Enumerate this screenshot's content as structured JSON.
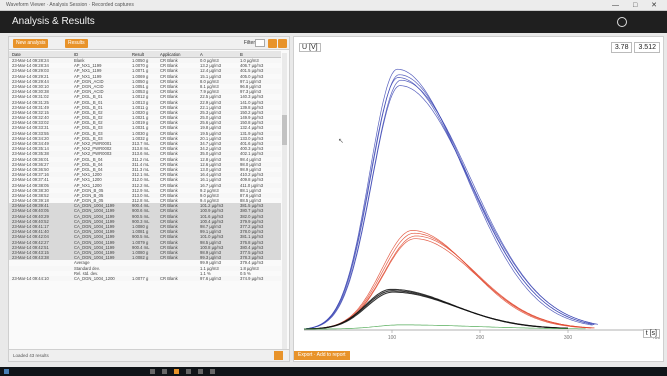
{
  "window": {
    "title": "Waveform Viewer · Analysis Session · Recorded captures",
    "controls": "— □ ✕"
  },
  "app": {
    "title": "Analysis & Results",
    "brand": ""
  },
  "left_panel": {
    "buttons": [
      "New analysis",
      "Results"
    ],
    "filter_label": "Filter",
    "columns": [
      "Date",
      "ID",
      "Result",
      "Application",
      "A",
      "B"
    ],
    "rows": [
      [
        "23-Mar-14 09:28:24",
        "Blank",
        "1.0050 g",
        "CR Blank",
        "0.0 µg/m3",
        "1.0 µg/m3"
      ],
      [
        "23-Mar-14 09:28:34",
        "AP_NX1_1199",
        "1.0070 g",
        "CR Blank",
        "13.2 µg/m3",
        "406.7 µg/m3"
      ],
      [
        "23-Mar-14 09:29:03",
        "AP_NX1_1199",
        "1.0071 g",
        "CR Blank",
        "12.4 µg/m3",
        "401.5 µg/m3"
      ],
      [
        "23-Mar-14 09:29:21",
        "AP_NX1_1199",
        "1.0069 g",
        "CR Blank",
        "15.1 µg/m3",
        "405.0 µg/m3"
      ],
      [
        "23-Mar-14 09:29:44",
        "AP_DGN_ACID",
        "1.0050 g",
        "CR Blank",
        "8.0 µg/m3",
        "97.1 µg/m3"
      ],
      [
        "23-Mar-14 09:30:10",
        "AP_DGN_ACID",
        "1.0051 g",
        "CR Blank",
        "8.1 µg/m3",
        "96.8 µg/m3"
      ],
      [
        "23-Mar-14 09:30:38",
        "AP_DGN_ACID",
        "1.0053 g",
        "CR Blank",
        "7.9 µg/m3",
        "97.3 µg/m3"
      ],
      [
        "23-Mar-14 09:31:02",
        "AP_DGL_B_01",
        "1.0012 g",
        "CR Blank",
        "22.5 µg/m3",
        "140.3 µg/m3"
      ],
      [
        "23-Mar-14 09:31:25",
        "AP_DGL_B_01",
        "1.0013 g",
        "CR Blank",
        "22.9 µg/m3",
        "141.0 µg/m3"
      ],
      [
        "23-Mar-14 09:31:49",
        "AP_DGL_B_01",
        "1.0011 g",
        "CR Blank",
        "22.1 µg/m3",
        "139.8 µg/m3"
      ],
      [
        "23-Mar-14 09:32:15",
        "AP_DGL_B_02",
        "1.0020 g",
        "CR Blank",
        "25.3 µg/m3",
        "150.2 µg/m3"
      ],
      [
        "23-Mar-14 09:32:40",
        "AP_DGL_B_02",
        "1.0021 g",
        "CR Blank",
        "25.0 µg/m3",
        "149.9 µg/m3"
      ],
      [
        "23-Mar-14 09:33:02",
        "AP_DGL_B_02",
        "1.0019 g",
        "CR Blank",
        "25.6 µg/m3",
        "150.8 µg/m3"
      ],
      [
        "23-Mar-14 09:33:31",
        "AP_DGL_B_03",
        "1.0031 g",
        "CR Blank",
        "19.8 µg/m3",
        "132.4 µg/m3"
      ],
      [
        "23-Mar-14 09:33:55",
        "AP_DGL_B_03",
        "1.0030 g",
        "CR Blank",
        "19.5 µg/m3",
        "131.9 µg/m3"
      ],
      [
        "23-Mar-14 09:34:20",
        "AP_DGL_B_03",
        "1.0032 g",
        "CR Blank",
        "20.1 µg/m3",
        "133.0 µg/m3"
      ],
      [
        "23-Mar-14 09:34:49",
        "AP_NX2_PWR0001",
        "313.7 mL",
        "CR Blank",
        "34.7 µg/m3",
        "401.6 µg/m3"
      ],
      [
        "23-Mar-14 09:35:14",
        "AP_NX2_PWR0002",
        "313.8 mL",
        "CR Blank",
        "34.2 µg/m3",
        "400.3 µg/m3"
      ],
      [
        "23-Mar-14 09:35:38",
        "AP_NX2_PWR0003",
        "313.6 mL",
        "CR Blank",
        "35.0 µg/m3",
        "402.1 µg/m3"
      ],
      [
        "23-Mar-14 09:36:01",
        "AP_DGL_B_04",
        "311.2 mL",
        "CR Blank",
        "12.8 µg/m3",
        "98.4 µg/m3"
      ],
      [
        "23-Mar-14 09:36:27",
        "AP_DGL_B_04",
        "311.4 mL",
        "CR Blank",
        "12.6 µg/m3",
        "98.0 µg/m3"
      ],
      [
        "23-Mar-14 09:36:50",
        "AP_DGL_B_04",
        "311.3 mL",
        "CR Blank",
        "13.0 µg/m3",
        "98.9 µg/m3"
      ],
      [
        "23-Mar-14 09:37:16",
        "AP_NX1_1200",
        "312.1 mL",
        "CR Blank",
        "16.4 µg/m3",
        "410.2 µg/m3"
      ],
      [
        "23-Mar-14 09:37:41",
        "AP_NX1_1200",
        "312.0 mL",
        "CR Blank",
        "16.1 µg/m3",
        "409.8 µg/m3"
      ],
      [
        "23-Mar-14 09:38:05",
        "AP_NX1_1200",
        "312.2 mL",
        "CR Blank",
        "16.7 µg/m3",
        "411.0 µg/m3"
      ],
      [
        "23-Mar-14 09:38:30",
        "AP_DGN_B_05",
        "312.9 mL",
        "CR Blank",
        "9.2 µg/m3",
        "88.1 µg/m3"
      ],
      [
        "23-Mar-14 09:38:52",
        "AP_DGN_B_05",
        "313.0 mL",
        "CR Blank",
        "9.0 µg/m3",
        "87.6 µg/m3"
      ],
      [
        "23-Mar-14 09:39:18",
        "AP_DGN_B_05",
        "312.8 mL",
        "CR Blank",
        "9.4 µg/m3",
        "88.5 µg/m3"
      ],
      [
        "23-Mar-14 09:39:41",
        "CA_DGN_1004_1199",
        "900.4 mL",
        "CR Blank",
        "101.2 µg/m3",
        "381.5 µg/m3"
      ],
      [
        "23-Mar-14 09:40:05",
        "CA_DGN_1004_1199",
        "900.6 mL",
        "CR Blank",
        "100.9 µg/m3",
        "380.7 µg/m3"
      ],
      [
        "23-Mar-14 09:40:29",
        "CA_DGN_1004_1199",
        "900.5 mL",
        "CR Blank",
        "101.6 µg/m3",
        "382.0 µg/m3"
      ],
      [
        "23-Mar-14 09:40:52",
        "CA_DGN_1004_1199",
        "900.3 mL",
        "CR Blank",
        "100.4 µg/m3",
        "379.9 µg/m3"
      ],
      [
        "23-Mar-14 09:41:17",
        "CA_DGN_1004_1199",
        "1.0080 g",
        "CR Blank",
        "98.7 µg/m3",
        "377.2 µg/m3"
      ],
      [
        "23-Mar-14 09:41:40",
        "CA_DGN_1004_1199",
        "1.0081 g",
        "CR Blank",
        "99.1 µg/m3",
        "378.0 µg/m3"
      ],
      [
        "23-Mar-14 09:42:04",
        "CA_DGN_1004_1199",
        "900.5 mL",
        "CR Blank",
        "101.0 µg/m3",
        "381.1 µg/m3"
      ],
      [
        "23-Mar-14 09:42:27",
        "CA_DGN_1004_1199",
        "1.0079 g",
        "CR Blank",
        "98.5 µg/m3",
        "376.8 µg/m3"
      ],
      [
        "23-Mar-14 09:42:51",
        "CA_DGN_1004_1199",
        "900.4 mL",
        "CR Blank",
        "100.8 µg/m3",
        "380.4 µg/m3"
      ],
      [
        "23-Mar-14 09:43:15",
        "CA_DGN_1004_1199",
        "1.0080 g",
        "CR Blank",
        "98.9 µg/m3",
        "377.5 µg/m3"
      ],
      [
        "23-Mar-14 09:43:38",
        "CA_DGN_1004_1199",
        "1.0082 g",
        "CR Blank",
        "99.3 µg/m3",
        "378.3 µg/m3"
      ],
      [
        "",
        "Average",
        "",
        "",
        "99.9 µg/m3",
        "379.4 µg/m3"
      ],
      [
        "",
        "Standard dev.",
        "",
        "",
        "1.1 µg/m3",
        "1.8 µg/m3"
      ],
      [
        "",
        "Rel. std. dev.",
        "",
        "",
        "1.1 %",
        "0.5 %"
      ],
      [
        "23-Mar-14 09:44:10",
        "CA_DGN_1004_1200",
        "1.0077 g",
        "CR Blank",
        "97.6 µg/m3",
        "374.9 µg/m3"
      ]
    ],
    "selected_rows_start": 28,
    "selected_rows_end": 38,
    "footer_note": "Loaded 43 results"
  },
  "right_panel": {
    "y_label": "U [V]",
    "x_label": "t [s]",
    "readout_1": "3.78",
    "readout_2": "3.512",
    "bottom_button": "Export · Add to report",
    "cursor_icon": "crosshair-cursor-icon"
  },
  "chart_data": {
    "type": "line",
    "xlabel": "t [s]",
    "ylabel": "U [V]",
    "xlim": [
      0,
      400
    ],
    "ylim": [
      0,
      1
    ],
    "x_ticks": [
      100,
      200,
      300,
      400
    ],
    "grid": false,
    "legend": "none",
    "colors": {
      "blue": "#3c46b4",
      "red": "#e0452b",
      "black": "#111111",
      "green": "#3aa040"
    },
    "series": [
      {
        "group": "blue",
        "peak_x": 108,
        "peak_y": 0.93,
        "rise": 45,
        "decay": 110,
        "end_x": 330
      },
      {
        "group": "blue",
        "peak_x": 110,
        "peak_y": 0.91,
        "rise": 46,
        "decay": 112,
        "end_x": 332
      },
      {
        "group": "blue",
        "peak_x": 106,
        "peak_y": 0.95,
        "rise": 44,
        "decay": 108,
        "end_x": 328
      },
      {
        "group": "blue",
        "peak_x": 109,
        "peak_y": 0.89,
        "rise": 45,
        "decay": 113,
        "end_x": 334
      },
      {
        "group": "blue",
        "peak_x": 107,
        "peak_y": 0.92,
        "rise": 45,
        "decay": 111,
        "end_x": 331
      },
      {
        "group": "red",
        "peak_x": 125,
        "peak_y": 0.35,
        "rise": 50,
        "decay": 95,
        "end_x": 328
      },
      {
        "group": "red",
        "peak_x": 127,
        "peak_y": 0.34,
        "rise": 51,
        "decay": 96,
        "end_x": 330
      },
      {
        "group": "red",
        "peak_x": 123,
        "peak_y": 0.36,
        "rise": 49,
        "decay": 94,
        "end_x": 327
      },
      {
        "group": "red",
        "peak_x": 126,
        "peak_y": 0.33,
        "rise": 50,
        "decay": 97,
        "end_x": 331
      },
      {
        "group": "black",
        "peak_x": 100,
        "peak_y": 0.14,
        "rise": 42,
        "decay": 100,
        "end_x": 300
      },
      {
        "group": "black",
        "peak_x": 101,
        "peak_y": 0.135,
        "rise": 42,
        "decay": 101,
        "end_x": 301
      },
      {
        "group": "black",
        "peak_x": 99,
        "peak_y": 0.145,
        "rise": 41,
        "decay": 99,
        "end_x": 299
      },
      {
        "group": "green",
        "peak_x": 110,
        "peak_y": 0.015,
        "rise": 40,
        "decay": 120,
        "end_x": 320
      }
    ]
  }
}
